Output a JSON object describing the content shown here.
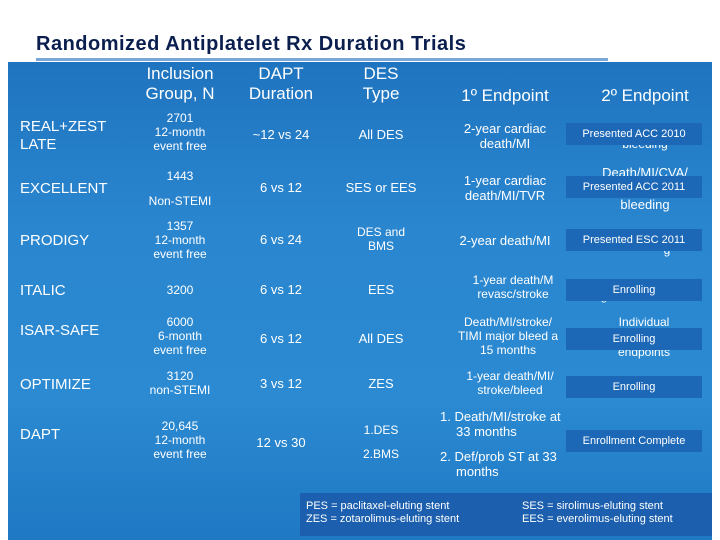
{
  "title": "Randomized Antiplatelet Rx Duration Trials",
  "headers": {
    "inclusion": [
      "Inclusion",
      "Group, N"
    ],
    "dapt": [
      "DAPT",
      "Duration"
    ],
    "des": [
      "DES",
      "Type"
    ],
    "primary": "1º Endpoint",
    "secondary": "2º Endpoint"
  },
  "rows": [
    {
      "name": [
        "REAL+ZEST",
        "LATE"
      ],
      "inclusion": [
        "2701",
        "12-month",
        "event free"
      ],
      "dapt": "~12 vs 24",
      "des": [
        "All DES"
      ],
      "primary": [
        "2-year cardiac",
        "death/MI"
      ],
      "secondary_under": [
        "bleeding"
      ],
      "badge": "Presented ACC 2010"
    },
    {
      "name": [
        "EXCELLENT"
      ],
      "inclusion": [
        "1443",
        "",
        "Non-STEMI"
      ],
      "dapt": "6 vs 12",
      "des": [
        "SES or EES"
      ],
      "primary": [
        "1-year cardiac",
        "death/MI/TVR"
      ],
      "secondary_under": [
        "Death/MI/CVA/",
        "bleeding"
      ],
      "badge": "Presented ACC 2011"
    },
    {
      "name": [
        "PRODIGY"
      ],
      "inclusion": [
        "1357",
        "12-month",
        "event free"
      ],
      "dapt": "6 vs 24",
      "des": [
        "DES and",
        "BMS"
      ],
      "primary": [
        "2-year death/MI"
      ],
      "secondary_under": [
        "g"
      ],
      "badge": "Presented ESC 2011"
    },
    {
      "name": [
        "ITALIC"
      ],
      "inclusion": [
        "3200"
      ],
      "dapt": "6 vs 12",
      "des": [
        "EES"
      ],
      "primary": [
        "1-year death/M",
        "revasc/stroke"
      ],
      "secondary_under": [
        "g"
      ],
      "badge": "Enrolling"
    },
    {
      "name": [
        "ISAR-SAFE"
      ],
      "inclusion": [
        "6000",
        "6-month",
        "event free"
      ],
      "dapt": "6 vs 12",
      "des": [
        "All DES"
      ],
      "primary": [
        "Death/MI/stroke/",
        "TIMI major bleed a",
        "15 months"
      ],
      "secondary_under": [
        "Individual",
        "endpoints"
      ],
      "badge": "Enrolling"
    },
    {
      "name": [
        "OPTIMIZE"
      ],
      "inclusion": [
        "3120",
        "non-STEMI"
      ],
      "dapt": "3 vs 12",
      "des": [
        "ZES"
      ],
      "primary": [
        "1-year death/MI/",
        "stroke/bleed"
      ],
      "secondary_under": [],
      "badge": "Enrolling"
    },
    {
      "name": [
        "DAPT"
      ],
      "inclusion": [
        "20,645",
        "12-month",
        "event free"
      ],
      "dapt": "12 vs 30",
      "des": [
        "1.DES",
        "2.BMS"
      ],
      "primary": [
        "1. Death/MI/stroke at",
        "33 months",
        "2. Def/prob ST at 33",
        "months"
      ],
      "secondary_under": [],
      "badge": "Enrollment Complete"
    }
  ],
  "footnotes": {
    "left": [
      "PES = paclitaxel-eluting stent",
      "ZES = zotarolimus-eluting stent"
    ],
    "right": [
      "SES = sirolimus-eluting stent",
      "EES = everolimus-eluting stent"
    ]
  }
}
